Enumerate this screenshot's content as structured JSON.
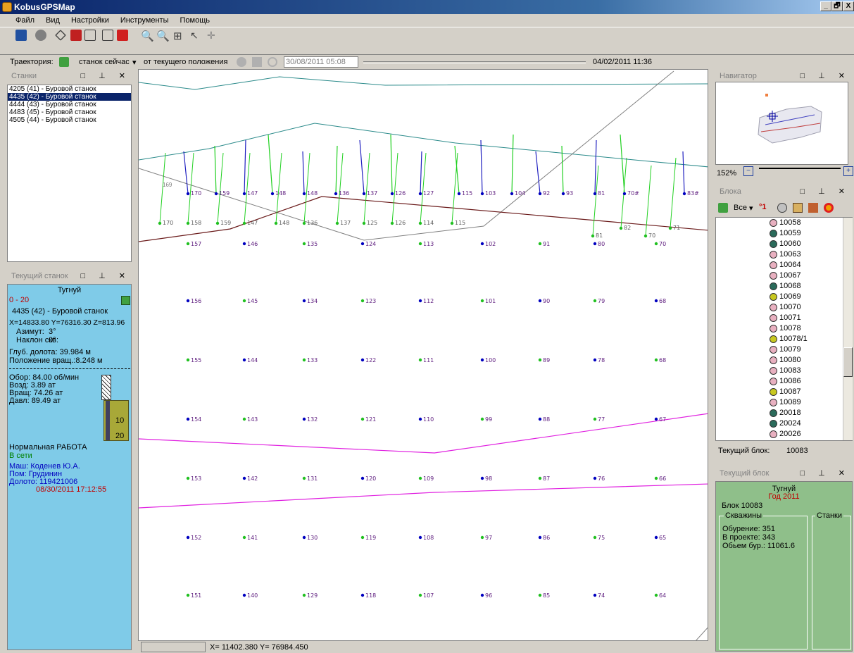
{
  "window": {
    "title": "KobusGPSMap",
    "controls": [
      "_",
      "🗗",
      "X"
    ]
  },
  "menu": [
    "Файл",
    "Вид",
    "Настройки",
    "Инструменты",
    "Помощь"
  ],
  "trajectory": {
    "label": "Траектория:",
    "mode": "станок сейчас",
    "from": "от текущего положения",
    "start_date": "30/08/2011 05:08",
    "end_date": "04/02/2011 11:36"
  },
  "panels": {
    "stanki": "Станки",
    "current_rig": "Текущий станок",
    "navigator": "Навигатор",
    "blocks": "Блока",
    "current_block": "Текущий блок"
  },
  "stanki_list": [
    "4205 (41) - Буровой станок",
    "4435 (42) - Буровой станок",
    "4444 (43) - Буровой станок",
    "4483 (45) - Буровой станок",
    "4505 (44) - Буровой станок"
  ],
  "current_rig": {
    "site": "Тугнуй",
    "range": "0 - 20",
    "name": "4435 (42) - Буровой станок",
    "coords": "X=14833.80 Y=76316.30 Z=813.96",
    "azimuth_label": "Азимут:",
    "azimuth": "3°",
    "incline_label": "Наклон скв:",
    "incline": "0°",
    "depth": "Глуб. долота: 39.984 м",
    "rot_pos": "Положение вращ.:8.248 м",
    "rpm": "Обор: 84.00 об/мин",
    "air": "Возд: 3.89 ат",
    "rot": "Вращ: 74.26 ат",
    "press": "Давл: 89.49 ат",
    "gauge_10": "10",
    "gauge_20": "20",
    "status": "Нормальная РАБОТА",
    "network": "В сети",
    "operator": "Маш: Коденев Ю.А.",
    "assistant": "Пом: Грудинин",
    "bit": "Долото: 119421006",
    "timestamp": "08/30/2011 17:12:55"
  },
  "navigator": {
    "zoom": "152%"
  },
  "blocks": {
    "filter": "Все",
    "items": [
      "10058",
      "10059",
      "10060",
      "10063",
      "10064",
      "10067",
      "10068",
      "10069",
      "10070",
      "10071",
      "10078",
      "10078/1",
      "10079",
      "10080",
      "10083",
      "10086",
      "10087",
      "10089",
      "20018",
      "20024",
      "20026"
    ],
    "item_types": [
      "pink",
      "green",
      "green",
      "pink",
      "pink",
      "pink",
      "green",
      "yellow",
      "pink",
      "pink",
      "pink",
      "yellow",
      "pink",
      "pink",
      "pink",
      "pink",
      "yellow",
      "pink",
      "green",
      "green",
      "pink"
    ],
    "current_label": "Текущий блок:",
    "current": "10083"
  },
  "current_block": {
    "site": "Тугнуй",
    "year": "Год 2011",
    "block": "Блок 10083",
    "wells_title": "Скважины",
    "rigs_title": "Станки",
    "drilled": "Обурение: 351",
    "planned": "В проекте: 343",
    "volume": "Обьем бур.: 11061.6"
  },
  "status": {
    "coords": "X= 11402.380 Y= 76984.450"
  },
  "map_labels": {
    "row1": [
      "170",
      "159",
      "147",
      "148",
      "148",
      "136",
      "137",
      "126",
      "127",
      "115",
      "103",
      "104",
      "92",
      "93",
      "81",
      "70#",
      "83#"
    ],
    "row2": [
      "170",
      "158",
      "159",
      "147",
      "148",
      "136",
      "137",
      "125",
      "126",
      "114",
      "115",
      "82",
      "71",
      "81",
      "70"
    ],
    "row3": [
      "157",
      "146",
      "135",
      "124",
      "113",
      "102",
      "91",
      "80",
      "70"
    ],
    "row4": [
      "156",
      "145",
      "134",
      "123",
      "112",
      "101",
      "90",
      "79",
      "68"
    ],
    "row5": [
      "155",
      "144",
      "133",
      "122",
      "111",
      "100",
      "89",
      "78",
      "68"
    ],
    "row6": [
      "154",
      "143",
      "132",
      "121",
      "110",
      "99",
      "88",
      "77",
      "67"
    ],
    "row7": [
      "153",
      "142",
      "131",
      "120",
      "109",
      "98",
      "87",
      "76",
      "66"
    ],
    "row8": [
      "152",
      "141",
      "130",
      "119",
      "108",
      "97",
      "86",
      "75",
      "65"
    ],
    "row9": [
      "151",
      "140",
      "129",
      "118",
      "107",
      "96",
      "85",
      "74",
      "64"
    ],
    "extra": [
      "169"
    ]
  },
  "colors": {
    "menu_accent": "#0a246a",
    "rig_panel": "#7fcbe8",
    "block_panel": "#8fbf8a",
    "status_red": "#c00000",
    "online_green": "#008000"
  }
}
